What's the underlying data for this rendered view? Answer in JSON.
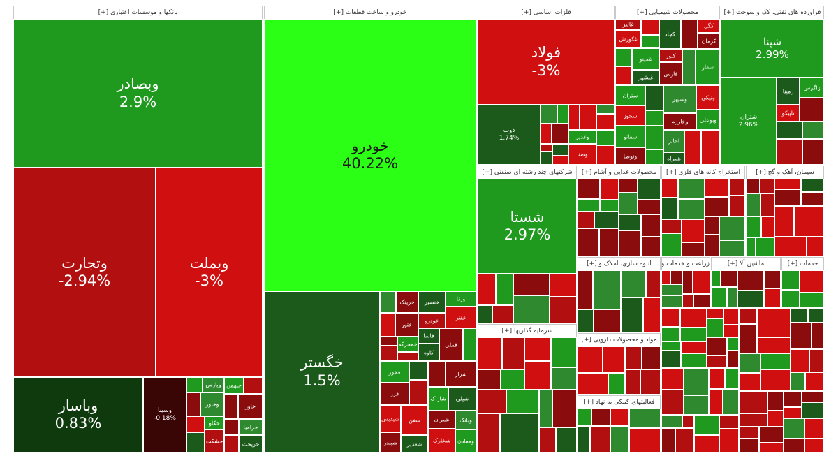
{
  "chart_data": {
    "type": "treemap",
    "colors": {
      "bright_green": "#2bff16",
      "green": "#1f9a1f",
      "mid_green": "#2f8a2f",
      "dark_green": "#1c5a1c",
      "deep_green": "#0e3a0e",
      "red": "#d01010",
      "mid_red": "#b21010",
      "dark_red": "#8a0c0c",
      "deep_red": "#3a0505"
    },
    "sectors": [
      {
        "key": "banks",
        "label": "بانکها و موسسات اعتباری [+]"
      },
      {
        "key": "auto",
        "label": "خودرو و ساخت قطعات [+]"
      },
      {
        "key": "metals",
        "label": "فلزات اساسی [+]"
      },
      {
        "key": "chem",
        "label": "محصولات شیمیایی [+]"
      },
      {
        "key": "oil",
        "label": "فراورده های نفتی، کک و سوخت [+]"
      },
      {
        "key": "multi",
        "label": "شرکتهای چند رشته ای صنعتی [+]"
      },
      {
        "key": "food",
        "label": "محصولات غذایی و آشام [+]"
      },
      {
        "key": "mining",
        "label": "استخراج کانه های فلزی [+]"
      },
      {
        "key": "cement",
        "label": "سیمان، آهک و گچ [+]"
      },
      {
        "key": "invest",
        "label": "سرمایه گذاریها [+]"
      },
      {
        "key": "tech",
        "label": "انبوه سازی، املاک و [+]"
      },
      {
        "key": "agri",
        "label": "زراعت و خدمات وا [+]"
      },
      {
        "key": "mach",
        "label": "ماشین آلا [+]"
      },
      {
        "key": "serv",
        "label": "خدمات [+]"
      },
      {
        "key": "nonmetal",
        "label": "مواد و محصولات دارویی [+]"
      },
      {
        "key": "finsup",
        "label": "فعالیتهای کمکی به نهاد [+]"
      }
    ],
    "tiles": [
      {
        "name": "وبصادر",
        "pct": "2.9%",
        "color": "green",
        "size": "big"
      },
      {
        "name": "وتجارت",
        "pct": "-2.94%",
        "color": "mid_red",
        "size": "big"
      },
      {
        "name": "وبملت",
        "pct": "-3%",
        "color": "red",
        "size": "big"
      },
      {
        "name": "وباسار",
        "pct": "0.83%",
        "color": "deep_green",
        "size": "big"
      },
      {
        "name": "خودرو",
        "pct": "40.22%",
        "color": "bright_green",
        "size": "big",
        "dark_text": true
      },
      {
        "name": "خگستر",
        "pct": "1.5%",
        "color": "dark_green",
        "size": "big"
      },
      {
        "name": "فولاد",
        "pct": "-3%",
        "color": "red",
        "size": "big"
      },
      {
        "name": "ذوب",
        "pct": "1.74%",
        "color": "dark_green",
        "size": "sm"
      },
      {
        "name": "شپنا",
        "pct": "2.99%",
        "color": "green",
        "size": "med"
      },
      {
        "name": "شتران",
        "pct": "2.96%",
        "color": "green",
        "size": "sm"
      },
      {
        "name": "شستا",
        "pct": "2.97%",
        "color": "green",
        "size": "big"
      },
      {
        "name": "وسینا",
        "pct": "-0.18%",
        "color": "deep_red",
        "size": "sm"
      }
    ],
    "minor_labels": [
      "وپارس",
      "وخاور",
      "خکاو",
      "خشکت",
      "خبهمن",
      "خاور",
      "خزامیا",
      "خریخت",
      "خرینگ",
      "ختور",
      "خمحرکه",
      "خنصیر",
      "خودرو",
      "ورنا",
      "خفنر",
      "فاسا",
      "کاوه",
      "فملی",
      "فخوز",
      "فزر",
      "شپدیس",
      "شبندر",
      "شفن",
      "شغدیر",
      "شراز",
      "شاراک",
      "شپلی",
      "شیران",
      "شخارک",
      "وبانک",
      "ومعادن",
      "وغدیر",
      "وصنا",
      "غالبر",
      "غکورش",
      "غمینو",
      "غبشهر",
      "کچاد",
      "کگل",
      "کرمان",
      "کنور",
      "فارس",
      "سفار",
      "ستران",
      "سخوز",
      "سفانو",
      "وتوصا",
      "وسپهر",
      "وخارزم",
      "ونیکی",
      "وبوعلی",
      "اخابر",
      "همراه",
      "رمپنا",
      "تاپیکو",
      "زاگرس"
    ]
  }
}
